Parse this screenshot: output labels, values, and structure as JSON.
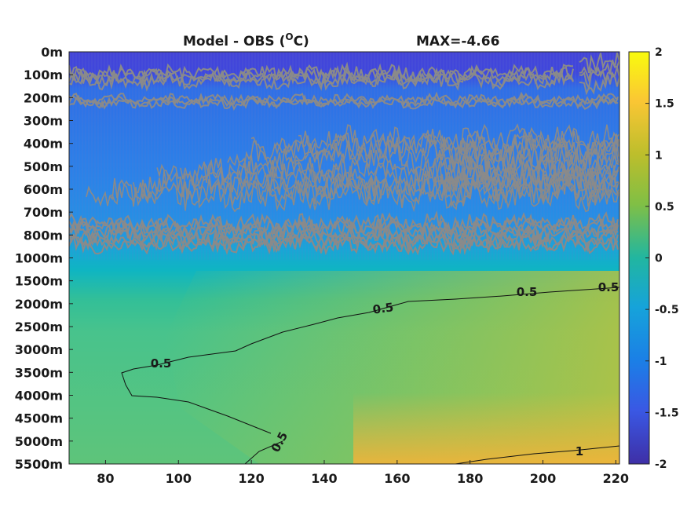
{
  "chart_data": {
    "type": "heatmap",
    "title": "Model - OBS (",
    "title_unit": "O",
    "title_suffix": "C)",
    "max_label": "MAX=-4.66",
    "xlabel": "",
    "ylabel": "",
    "xlim": [
      70,
      221
    ],
    "x_ticks": [
      80,
      100,
      120,
      140,
      160,
      180,
      200,
      220
    ],
    "y_tick_labels": [
      "0m",
      "100m",
      "200m",
      "300m",
      "400m",
      "500m",
      "600m",
      "700m",
      "800m",
      "1000m",
      "1500m",
      "2000m",
      "2500m",
      "3000m",
      "3500m",
      "4000m",
      "4500m",
      "5000m",
      "5500m"
    ],
    "colorbar": {
      "range": [
        -2,
        2
      ],
      "ticks": [
        2,
        1.5,
        1,
        0.5,
        0,
        -0.5,
        -1,
        -1.5,
        -2
      ],
      "colormap": "parula"
    },
    "contour_labels": [
      "0.5",
      "0.5",
      "0.5",
      "0.5",
      "0.5",
      "1"
    ],
    "colors": {
      "deep_blue": "#3a3fd6",
      "blue": "#2a7fe6",
      "cyan": "#17b3c7",
      "green": "#4cc38a",
      "yellow_green": "#a8c23b",
      "orange": "#f0b43a",
      "obs_noise_gray": "#8a8a8a"
    }
  }
}
